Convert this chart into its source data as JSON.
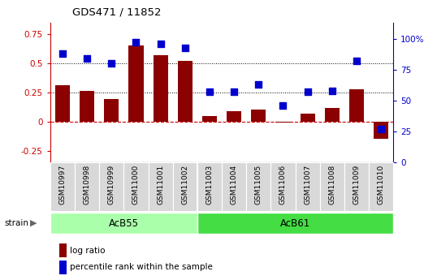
{
  "title": "GDS471 / 11852",
  "samples": [
    "GSM10997",
    "GSM10998",
    "GSM10999",
    "GSM11000",
    "GSM11001",
    "GSM11002",
    "GSM11003",
    "GSM11004",
    "GSM11005",
    "GSM11006",
    "GSM11007",
    "GSM11008",
    "GSM11009",
    "GSM11010"
  ],
  "log_ratio": [
    0.31,
    0.26,
    0.19,
    0.65,
    0.57,
    0.52,
    0.05,
    0.09,
    0.1,
    -0.01,
    0.07,
    0.12,
    0.28,
    -0.15
  ],
  "percentile": [
    88,
    84,
    80,
    97,
    96,
    93,
    57,
    57,
    63,
    46,
    57,
    58,
    82,
    27
  ],
  "bar_color": "#8B0000",
  "scatter_color": "#0000CD",
  "hline_color": "#CC0000",
  "ylim_left": [
    -0.35,
    0.85
  ],
  "ylim_right": [
    0,
    113.33
  ],
  "yticks_left": [
    -0.25,
    0.0,
    0.25,
    0.5,
    0.75
  ],
  "ytick_labels_left": [
    "-0.25",
    "0",
    "0.25",
    "0.5",
    "0.75"
  ],
  "yticks_right": [
    0,
    25,
    50,
    75,
    100
  ],
  "ytick_labels_right": [
    "0",
    "25",
    "50",
    "75",
    "100%"
  ],
  "hlines_dotted": [
    0.25,
    0.5
  ],
  "group1_label": "AcB55",
  "group2_label": "AcB61",
  "group1_count": 6,
  "strain_label": "strain",
  "legend_bar_label": "log ratio",
  "legend_dot_label": "percentile rank within the sample",
  "plot_bg": "#ffffff",
  "fig_bg": "#ffffff",
  "group1_color": "#aaffaa",
  "group2_color": "#44dd44",
  "tick_bg": "#d8d8d8"
}
